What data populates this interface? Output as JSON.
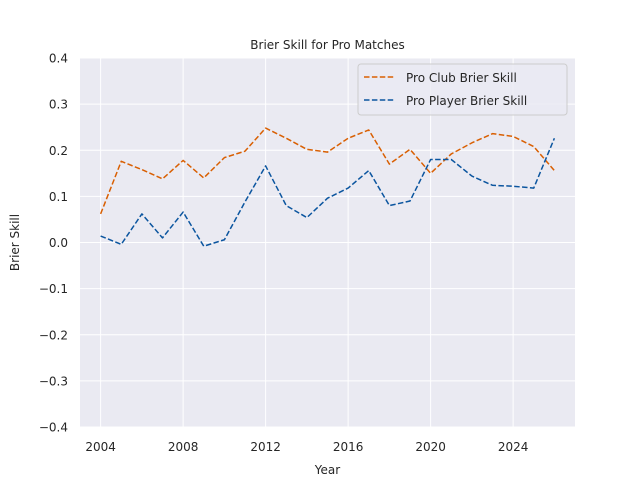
{
  "chart_data": {
    "type": "line",
    "title": "Brier Skill for Pro Matches",
    "xlabel": "Year",
    "ylabel": "Brier Skill",
    "xlim": [
      2003,
      2027
    ],
    "ylim": [
      -0.4,
      0.4
    ],
    "xticks": [
      2004,
      2008,
      2012,
      2016,
      2020,
      2024
    ],
    "yticks": [
      -0.4,
      -0.3,
      -0.2,
      -0.1,
      0.0,
      0.1,
      0.2,
      0.3,
      0.4
    ],
    "xtick_labels": [
      "2004",
      "2008",
      "2012",
      "2016",
      "2020",
      "2024"
    ],
    "ytick_labels": [
      "−0.4",
      "−0.3",
      "−0.2",
      "−0.1",
      "0.0",
      "0.1",
      "0.2",
      "0.3",
      "0.4"
    ],
    "grid": true,
    "legend_position": "top-right",
    "x": [
      2004,
      2005,
      2006,
      2007,
      2008,
      2009,
      2010,
      2011,
      2012,
      2013,
      2014,
      2015,
      2016,
      2017,
      2018,
      2019,
      2020,
      2021,
      2022,
      2023,
      2024,
      2025,
      2026
    ],
    "series": [
      {
        "name": "Pro Club Brier Skill",
        "color": "#d95f02",
        "style": "dashed",
        "values": [
          0.062,
          0.176,
          0.158,
          0.138,
          0.178,
          0.14,
          0.184,
          0.198,
          0.248,
          0.226,
          0.202,
          0.196,
          0.226,
          0.244,
          0.17,
          0.202,
          0.15,
          0.192,
          0.216,
          0.236,
          0.23,
          0.208,
          0.156
        ]
      },
      {
        "name": "Pro Player Brier Skill",
        "color": "#0b559f",
        "style": "dashed",
        "values": [
          0.014,
          -0.004,
          0.062,
          0.01,
          0.066,
          -0.008,
          0.006,
          0.088,
          0.166,
          0.08,
          0.054,
          0.096,
          0.118,
          0.156,
          0.08,
          0.09,
          0.18,
          0.18,
          0.144,
          0.124,
          0.122,
          0.118,
          0.226
        ]
      }
    ]
  }
}
